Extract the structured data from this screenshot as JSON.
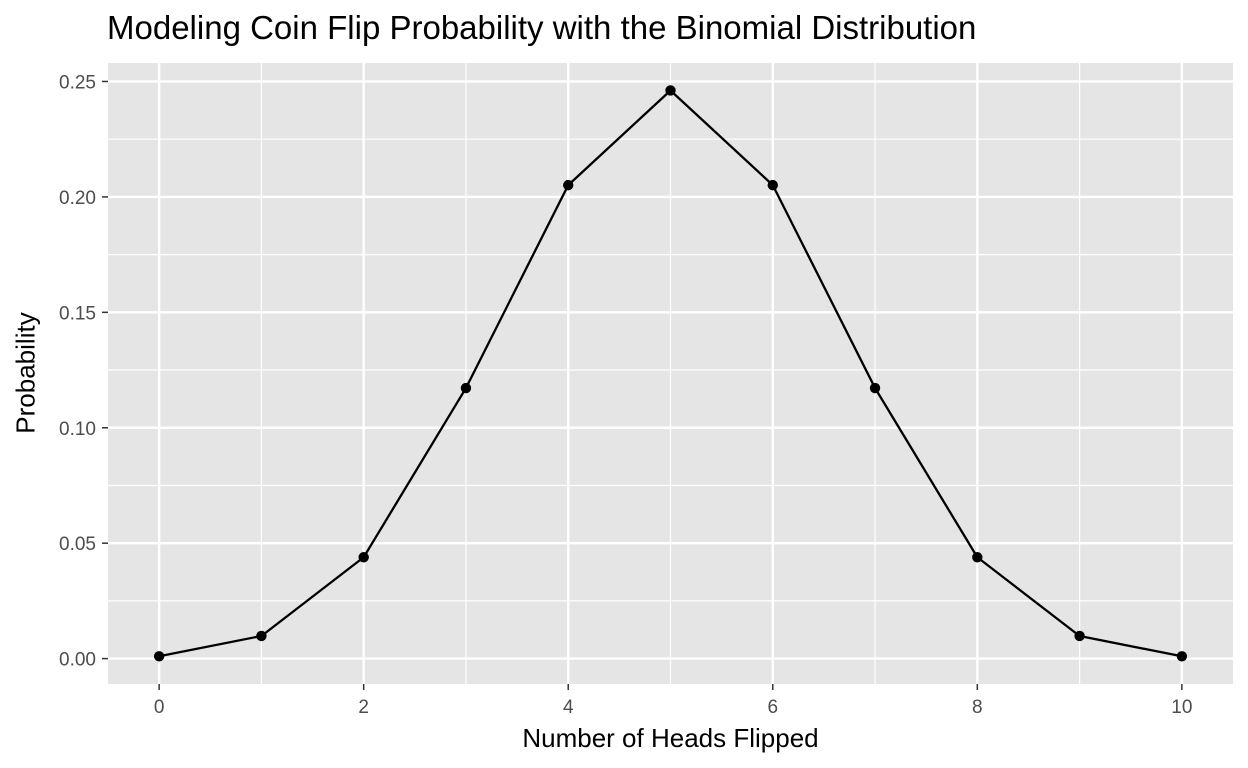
{
  "chart_data": {
    "type": "line",
    "title": "Modeling Coin Flip Probability with the Binomial Distribution",
    "xlabel": "Number of Heads Flipped",
    "ylabel": "Probability",
    "x": [
      0,
      1,
      2,
      3,
      4,
      5,
      6,
      7,
      8,
      9,
      10
    ],
    "series": [
      {
        "values": [
          0.001,
          0.0098,
          0.0439,
          0.1172,
          0.2051,
          0.2461,
          0.2051,
          0.1172,
          0.0439,
          0.0098,
          0.001
        ]
      }
    ],
    "markers": true,
    "xlim": [
      -0.5,
      10.5
    ],
    "ylim": [
      -0.011,
      0.258
    ],
    "x_ticks": [
      0,
      2,
      4,
      6,
      8,
      10
    ],
    "x_tick_labels": [
      "0",
      "2",
      "4",
      "6",
      "8",
      "10"
    ],
    "y_ticks": [
      0,
      0.05,
      0.1,
      0.15,
      0.2,
      0.25
    ],
    "y_tick_labels": [
      "0.00",
      "0.05",
      "0.10",
      "0.15",
      "0.20",
      "0.25"
    ],
    "grid": true,
    "colors": {
      "panel_background": "#e5e5e5",
      "grid": "#ffffff",
      "line": "#000000",
      "points": "#000000",
      "tick_text": "#4d4d4d",
      "tick_marks": "#333333"
    }
  }
}
